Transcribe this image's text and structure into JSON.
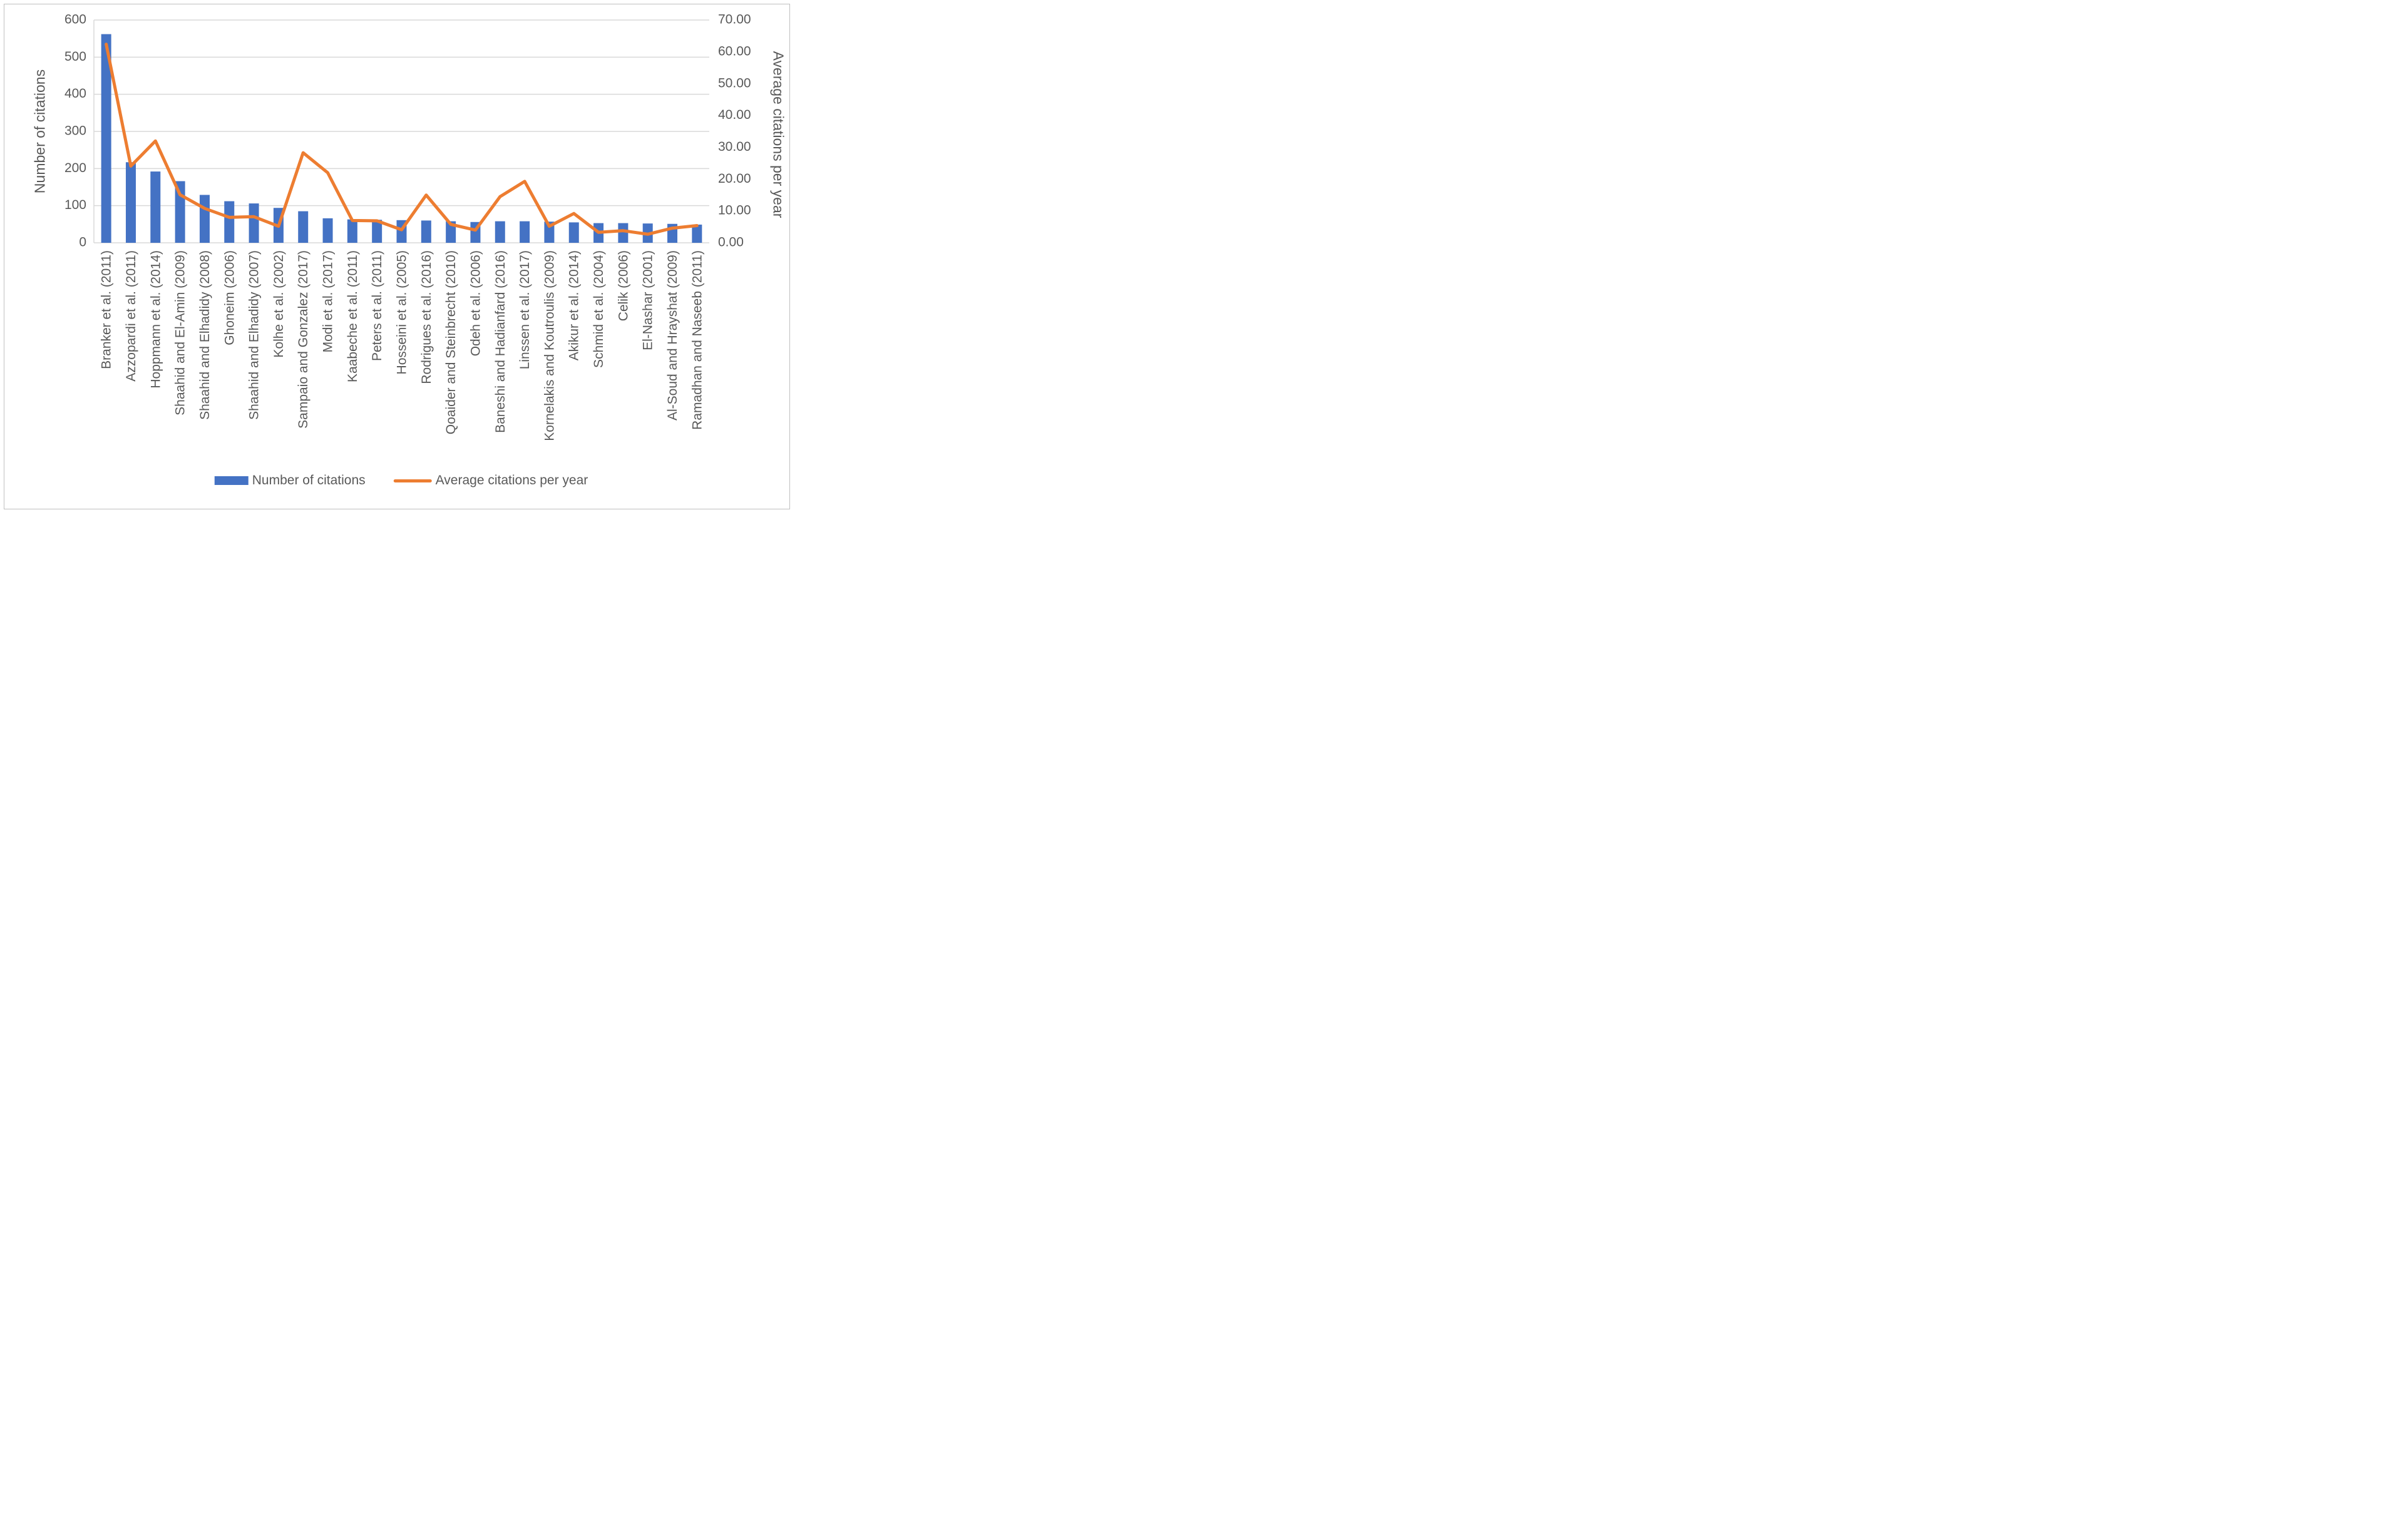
{
  "chart_data": {
    "type": "bar+line",
    "title": "",
    "categories": [
      "Branker et al. (2011)",
      "Azzopardi et al. (2011)",
      "Hoppmann et al. (2014)",
      "Shaahid and El-Amin (2009)",
      "Shaahid and Elhadidy (2008)",
      "Ghoneim (2006)",
      "Shaahid and Elhadidy (2007)",
      "Kolhe et al. (2002)",
      "Sampaio and Gonzalez (2017)",
      "Modi et al. (2017)",
      "Kaabeche et al. (2011)",
      "Peters et al. (2011)",
      "Hosseini et al. (2005)",
      "Rodrigues et al. (2016)",
      "Qoaider and Steinbrecht (2010)",
      "Odeh et al. (2006)",
      "Baneshi and Hadianfard (2016)",
      "Linssen et al. (2017)",
      "Kornelakis and Koutroulis (2009)",
      "Akikur et al. (2014)",
      "Schmid et al. (2004)",
      "Celik (2006)",
      "El-Nashar (2001)",
      "Al-Soud and Hrayshat (2009)",
      "Ramadhan and Naseeb (2011)"
    ],
    "series": [
      {
        "name": "Number of citations",
        "type": "bar",
        "axis": "left",
        "color": "#4472C4",
        "values": [
          562,
          217,
          192,
          166,
          129,
          112,
          106,
          94,
          85,
          66,
          63,
          62,
          61,
          60,
          58,
          56,
          58,
          58,
          57,
          55,
          53,
          53,
          52,
          51,
          49
        ]
      },
      {
        "name": "Average citations per year",
        "type": "line",
        "axis": "right",
        "color": "#ED7D31",
        "values": [
          62.4,
          24.1,
          32.0,
          15.1,
          10.8,
          8.0,
          8.2,
          5.2,
          28.3,
          22.0,
          7.0,
          6.9,
          4.1,
          15.0,
          5.8,
          4.0,
          14.5,
          19.3,
          5.2,
          9.2,
          3.3,
          3.8,
          2.7,
          4.6,
          5.4
        ]
      }
    ],
    "left_axis_title": "Number of citations",
    "right_axis_title": "Average citations per year",
    "left_axis_ticks": [
      "600",
      "500",
      "400",
      "300",
      "200",
      "100",
      "0"
    ],
    "right_axis_ticks": [
      "70.00",
      "60.00",
      "50.00",
      "40.00",
      "30.00",
      "20.00",
      "10.00",
      "0.00"
    ],
    "left_ylim": [
      0,
      600
    ],
    "right_ylim": [
      0,
      70
    ],
    "grid": true,
    "legend_position": "bottom",
    "gridline_color": "#D9D9D9",
    "text_color": "#595959"
  }
}
